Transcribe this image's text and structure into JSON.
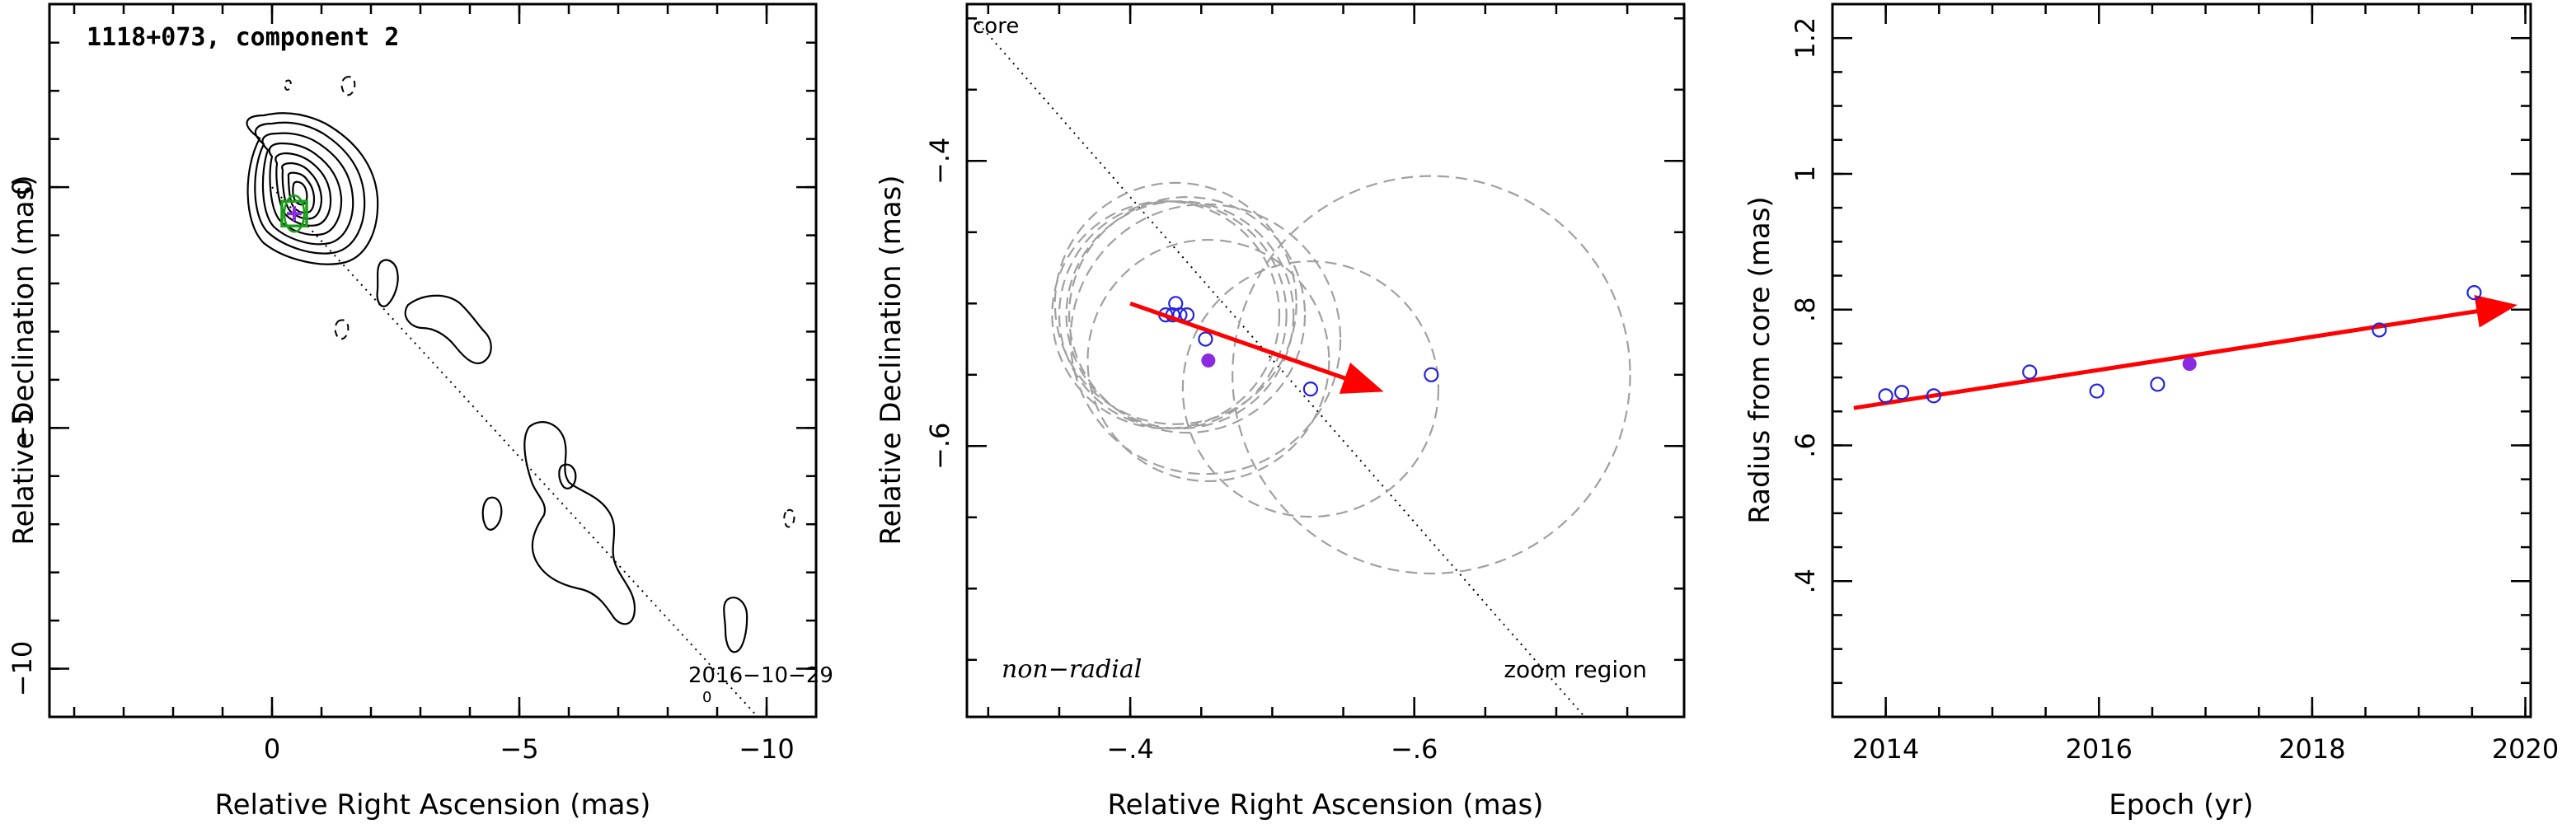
{
  "chart_data": [
    {
      "type": "contour",
      "title": "1118+073, component 2",
      "xlabel": "Relative Right Ascension (mas)",
      "ylabel": "Relative Declination (mas)",
      "xlim": [
        4.5,
        -11
      ],
      "ylim": [
        -11,
        3.8
      ],
      "xticks": [
        0,
        -5,
        -10
      ],
      "yticks": [
        0,
        -5,
        -10
      ],
      "annotation": "2016−10−29",
      "annotation_sub": "0",
      "component_position": [
        -0.45,
        -0.55
      ],
      "ridge_line": [
        [
          0,
          0
        ],
        [
          -10,
          -11.2
        ]
      ],
      "colors": {
        "component_box": "#1a9e1a",
        "component_cross": "#8a2be2"
      }
    },
    {
      "type": "scatter",
      "xlabel": "Relative Right Ascension (mas)",
      "ylabel": "Relative Declination (mas)",
      "xlim": [
        -0.285,
        -0.79
      ],
      "ylim": [
        -0.79,
        -0.29
      ],
      "xticks": [
        -0.4,
        -0.6
      ],
      "yticks": [
        -0.4,
        -0.6
      ],
      "label_core": "core",
      "label_motion": "non−radial",
      "label_region": "zoom region",
      "points": [
        {
          "x": -0.425,
          "y": -0.508
        },
        {
          "x": -0.43,
          "y": -0.508
        },
        {
          "x": -0.432,
          "y": -0.5
        },
        {
          "x": -0.435,
          "y": -0.508
        },
        {
          "x": -0.44,
          "y": -0.508
        },
        {
          "x": -0.453,
          "y": -0.525
        },
        {
          "x": -0.527,
          "y": -0.56
        },
        {
          "x": -0.612,
          "y": -0.55
        }
      ],
      "highlight_point": {
        "x": -0.455,
        "y": -0.54
      },
      "error_circles": [
        {
          "x": -0.425,
          "y": -0.508,
          "r": 0.08
        },
        {
          "x": -0.43,
          "y": -0.508,
          "r": 0.08
        },
        {
          "x": -0.432,
          "y": -0.5,
          "r": 0.085
        },
        {
          "x": -0.435,
          "y": -0.508,
          "r": 0.08
        },
        {
          "x": -0.44,
          "y": -0.508,
          "r": 0.083
        },
        {
          "x": -0.453,
          "y": -0.525,
          "r": 0.095
        },
        {
          "x": -0.455,
          "y": -0.54,
          "r": 0.085
        },
        {
          "x": -0.527,
          "y": -0.56,
          "r": 0.09
        },
        {
          "x": -0.612,
          "y": -0.55,
          "r": 0.14
        }
      ],
      "core_line": [
        [
          -0.29,
          -0.3
        ],
        [
          -0.72,
          -0.79
        ]
      ],
      "motion_vector": {
        "from": [
          -0.4,
          -0.5
        ],
        "to": [
          -0.573,
          -0.56
        ]
      },
      "colors": {
        "points": "#2323e0",
        "highlight": "#8a2be2",
        "vector": "#ff0000",
        "circles": "#a0a0a0"
      }
    },
    {
      "type": "scatter",
      "xlabel": "Epoch (yr)",
      "ylabel": "Radius from core (mas)",
      "xlim": [
        2013.5,
        2020.05
      ],
      "ylim": [
        0.2,
        1.25
      ],
      "xticks": [
        2014,
        2016,
        2018,
        2020
      ],
      "yticks": [
        0.4,
        0.6,
        0.8,
        1,
        1.2
      ],
      "points": [
        {
          "x": 2014.0,
          "y": 0.673
        },
        {
          "x": 2014.15,
          "y": 0.678
        },
        {
          "x": 2014.45,
          "y": 0.673
        },
        {
          "x": 2015.35,
          "y": 0.708
        },
        {
          "x": 2015.98,
          "y": 0.68
        },
        {
          "x": 2016.55,
          "y": 0.69
        },
        {
          "x": 2018.63,
          "y": 0.77
        },
        {
          "x": 2019.52,
          "y": 0.825
        }
      ],
      "highlight_point": {
        "x": 2016.85,
        "y": 0.72
      },
      "trend": {
        "from": [
          2013.7,
          0.655
        ],
        "to": [
          2019.85,
          0.805
        ]
      },
      "colors": {
        "points": "#2323e0",
        "highlight": "#8a2be2",
        "trend": "#ff0000"
      }
    }
  ]
}
